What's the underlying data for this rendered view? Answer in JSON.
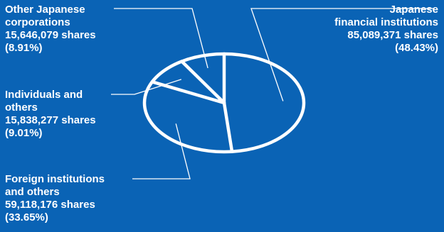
{
  "colors": {
    "background": "#0a63b5",
    "stroke": "#ffffff",
    "text": "#ffffff"
  },
  "chart_data": {
    "type": "pie",
    "title": "",
    "slices": [
      {
        "key": "japanese",
        "label_lines": [
          "Japanese",
          "financial institutions"
        ],
        "shares": "85,089,371 shares",
        "percent_label": "(48.43%)",
        "value": 48.43
      },
      {
        "key": "foreign",
        "label_lines": [
          "Foreign institutions",
          "and others"
        ],
        "shares": "59,118,176 shares",
        "percent_label": "(33.65%)",
        "value": 33.65
      },
      {
        "key": "individuals",
        "label_lines": [
          "Individuals and",
          "others"
        ],
        "shares": "15,838,277 shares",
        "percent_label": "(9.01%)",
        "value": 9.01
      },
      {
        "key": "other",
        "label_lines": [
          "Other Japanese",
          "corporations"
        ],
        "shares": "15,646,079 shares",
        "percent_label": "(8.91%)",
        "value": 8.91
      }
    ]
  }
}
